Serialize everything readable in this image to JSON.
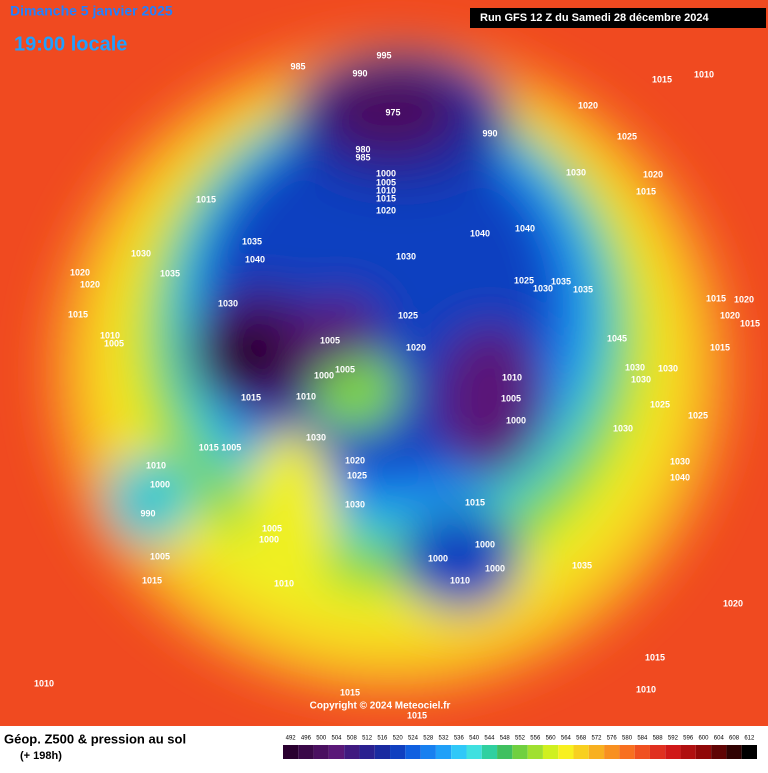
{
  "header": {
    "title": "Dimanche 5 janvier 2025",
    "time": "19:00 locale",
    "run": "Run GFS 12 Z du Samedi 28 décembre 2024"
  },
  "map": {
    "pressure_labels": [
      "985",
      "990",
      "995",
      "975",
      "990",
      "980",
      "985",
      "1000",
      "1005",
      "1010",
      "1015",
      "1020",
      "1015",
      "1010",
      "1020",
      "1025",
      "1030",
      "1020",
      "1015",
      "1040",
      "1040",
      "1030",
      "1035",
      "1040",
      "1030",
      "1035",
      "1015",
      "1020",
      "1020",
      "1015",
      "1010",
      "1005",
      "1030",
      "1025",
      "1020",
      "1005",
      "1005",
      "1000",
      "1015",
      "1010",
      "1010",
      "1005",
      "1000",
      "1025",
      "1030",
      "1035",
      "1035",
      "1045",
      "1030",
      "1030",
      "1030",
      "1025",
      "1025",
      "1030",
      "1030",
      "1040",
      "1015",
      "1020",
      "1020",
      "1015",
      "1015",
      "1030",
      "1015 1005",
      "1020",
      "1025",
      "1030",
      "1010",
      "1000",
      "990",
      "1005",
      "1000",
      "1005",
      "1015",
      "1010",
      "1015",
      "1000",
      "1000",
      "1000",
      "1010",
      "1035",
      "1020",
      "1015",
      "1010",
      "1010",
      "1015",
      "1015"
    ],
    "copyright": "Copyright © 2024 Meteociel.fr"
  },
  "footer": {
    "product": "Géop. Z500 & pression au sol",
    "lead": "(+ 198h)"
  },
  "legend": {
    "values": [
      492,
      496,
      500,
      504,
      508,
      512,
      516,
      520,
      524,
      528,
      532,
      536,
      540,
      544,
      548,
      552,
      556,
      560,
      564,
      568,
      572,
      576,
      580,
      584,
      588,
      592,
      596,
      600,
      604,
      608,
      612
    ],
    "colors": [
      "#2a0030",
      "#3a0848",
      "#4a1060",
      "#5a1878",
      "#401a80",
      "#2a2090",
      "#1a2aa0",
      "#1040c0",
      "#1060e0",
      "#1880f0",
      "#20a0f8",
      "#30c8f8",
      "#40e0e0",
      "#30d0a0",
      "#40c060",
      "#70d040",
      "#a0e030",
      "#d0f020",
      "#f8f020",
      "#f8d020",
      "#f8b020",
      "#f89020",
      "#f87020",
      "#f05020",
      "#e03020",
      "#d01818",
      "#b01010",
      "#900808",
      "#600404",
      "#300202",
      "#000000"
    ]
  }
}
